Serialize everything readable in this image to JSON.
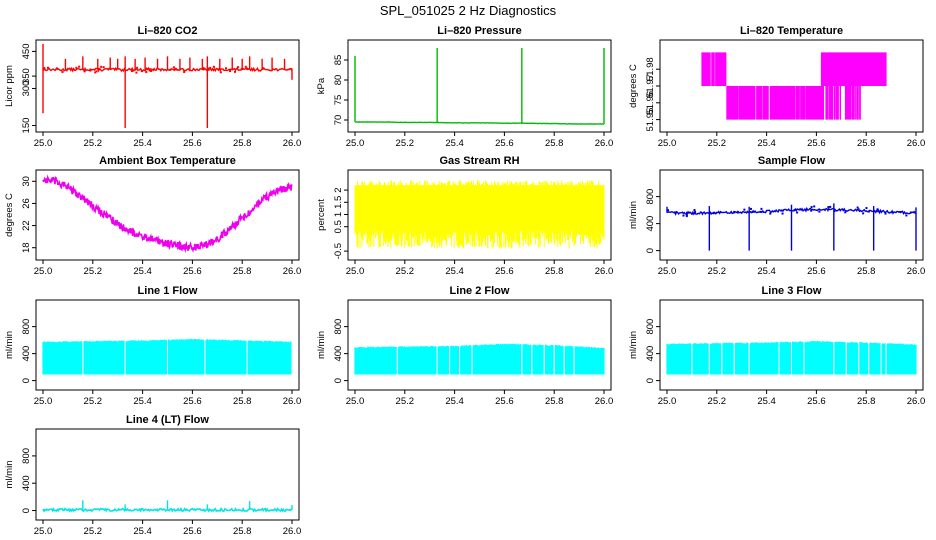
{
  "page_title": "SPL_051025  2 Hz Diagnostics",
  "chart_data": [
    {
      "type": "line",
      "title": "Li–820 CO2",
      "ylabel": "Licor ppm",
      "xlim": [
        25.0,
        26.0
      ],
      "ylim": [
        140,
        480
      ],
      "x_ticks": [
        "25.0",
        "25.2",
        "25.4",
        "25.6",
        "25.8",
        "26.0"
      ],
      "y_ticks": [
        150,
        300,
        350,
        450
      ],
      "color": "#ff0000",
      "series": [
        {
          "x": [
            25.0,
            25.02,
            25.04,
            25.06,
            25.08,
            25.1,
            25.12,
            25.14,
            25.16,
            25.18,
            25.2,
            25.22,
            25.24,
            25.26,
            25.28,
            25.3,
            25.32,
            25.34,
            25.36,
            25.38,
            25.4,
            25.42,
            25.44,
            25.46,
            25.48,
            25.5,
            25.52,
            25.54,
            25.56,
            25.58,
            25.6,
            25.62,
            25.64,
            25.66,
            25.68,
            25.7,
            25.72,
            25.74,
            25.76,
            25.78,
            25.8,
            25.82,
            25.84,
            25.86,
            25.88,
            25.9,
            25.92,
            25.94,
            25.96,
            25.98,
            26.0
          ],
          "values": [
            375,
            378,
            376,
            377,
            375,
            378,
            376,
            377,
            375,
            378,
            376,
            377,
            375,
            378,
            376,
            377,
            375,
            378,
            376,
            377,
            375,
            378,
            376,
            377,
            375,
            378,
            376,
            377,
            375,
            378,
            376,
            377,
            375,
            378,
            376,
            377,
            375,
            378,
            376,
            377,
            375,
            378,
            376,
            377,
            375,
            378,
            376,
            377,
            375,
            378,
            376
          ]
        }
      ],
      "spikes_up": [
        [
          25.0,
          480
        ],
        [
          25.09,
          420
        ],
        [
          25.16,
          430
        ],
        [
          25.22,
          420
        ],
        [
          25.27,
          425
        ],
        [
          25.3,
          420
        ],
        [
          25.33,
          430
        ],
        [
          25.37,
          420
        ],
        [
          25.41,
          425
        ],
        [
          25.46,
          420
        ],
        [
          25.5,
          430
        ],
        [
          25.55,
          420
        ],
        [
          25.59,
          425
        ],
        [
          25.64,
          420
        ],
        [
          25.66,
          430
        ],
        [
          25.71,
          420
        ],
        [
          25.76,
          425
        ],
        [
          25.8,
          420
        ],
        [
          25.83,
          430
        ],
        [
          25.88,
          420
        ],
        [
          25.92,
          425
        ],
        [
          25.97,
          420
        ]
      ],
      "spikes_down": [
        [
          25.0,
          200
        ],
        [
          25.33,
          140
        ],
        [
          25.66,
          140
        ],
        [
          26.0,
          335
        ]
      ]
    },
    {
      "type": "line",
      "title": "Li–820 Pressure",
      "ylabel": "kPa",
      "xlim": [
        25.0,
        26.0
      ],
      "ylim": [
        68,
        89
      ],
      "x_ticks": [
        "25.0",
        "25.2",
        "25.4",
        "25.6",
        "25.8",
        "26.0"
      ],
      "y_ticks": [
        70,
        75,
        80,
        85
      ],
      "color": "#00bb00",
      "series": [
        {
          "x": [
            25.0,
            25.1,
            25.2,
            25.3,
            25.4,
            25.5,
            25.6,
            25.7,
            25.8,
            25.9,
            26.0
          ],
          "values": [
            69.5,
            69.5,
            69.4,
            69.4,
            69.3,
            69.3,
            69.2,
            69.2,
            69.1,
            69.0,
            69.0
          ]
        }
      ],
      "spikes_up": [
        [
          25.0,
          86
        ],
        [
          25.33,
          88
        ],
        [
          25.67,
          88
        ],
        [
          26.0,
          88
        ]
      ],
      "spikes_down": []
    },
    {
      "type": "line",
      "title": "Li–820 Temperature",
      "ylabel": "degrees C",
      "xlim": [
        25.0,
        26.0
      ],
      "ylim": [
        51.945,
        51.995
      ],
      "x_ticks": [
        "25.0",
        "25.2",
        "25.4",
        "25.6",
        "25.8",
        "26.0"
      ],
      "y_ticks": [
        51.95,
        51.96,
        51.97,
        51.98
      ],
      "color": "#ff00ff",
      "series": [
        {
          "x": [
            25.0,
            25.14,
            25.15,
            25.2,
            25.24,
            25.6,
            25.67,
            25.8,
            25.88,
            26.0
          ],
          "values": [
            51.99,
            51.99,
            51.97,
            51.97,
            51.95,
            51.95,
            51.97,
            51.97,
            51.99,
            51.99
          ]
        }
      ]
    },
    {
      "type": "line",
      "title": "Ambient Box Temperature",
      "ylabel": "degrees C",
      "xlim": [
        25.0,
        26.0
      ],
      "ylim": [
        16.5,
        31.5
      ],
      "x_ticks": [
        "25.0",
        "25.2",
        "25.4",
        "25.6",
        "25.8",
        "26.0"
      ],
      "y_ticks": [
        18,
        22,
        26,
        30
      ],
      "color": "#ee00ee",
      "series": [
        {
          "x": [
            25.0,
            25.05,
            25.1,
            25.15,
            25.2,
            25.25,
            25.3,
            25.35,
            25.4,
            25.45,
            25.5,
            25.55,
            25.6,
            25.65,
            25.7,
            25.75,
            25.8,
            25.85,
            25.9,
            25.95,
            26.0
          ],
          "values": [
            30.3,
            30.0,
            28.9,
            27.3,
            25.6,
            23.9,
            22.3,
            21.0,
            20.0,
            19.3,
            18.8,
            18.3,
            18.0,
            18.4,
            19.6,
            21.3,
            23.4,
            25.4,
            27.2,
            28.5,
            29.0
          ]
        }
      ]
    },
    {
      "type": "area",
      "title": "Gas Stream RH",
      "ylabel": "percent",
      "xlim": [
        25.0,
        26.0
      ],
      "ylim": [
        -0.7,
        2.7
      ],
      "x_ticks": [
        "25.0",
        "25.2",
        "25.4",
        "25.6",
        "25.8",
        "26.0"
      ],
      "y_ticks": [
        -0.5,
        0.5,
        1.0,
        1.5,
        2.0
      ],
      "color": "#ffff00",
      "series": [
        {
          "name": "",
          "x": [
            25.0,
            26.0
          ],
          "values": [
            2.4,
            2.4
          ]
        },
        {
          "name": "",
          "x": [
            25.0,
            26.0
          ],
          "values": [
            -0.4,
            -0.4
          ]
        }
      ]
    },
    {
      "type": "line",
      "title": "Sample Flow",
      "ylabel": "ml/min",
      "xlim": [
        25.0,
        26.0
      ],
      "ylim": [
        -80,
        1150
      ],
      "x_ticks": [
        "25.0",
        "25.2",
        "25.4",
        "25.6",
        "25.8",
        "26.0"
      ],
      "y_ticks": [
        0,
        400,
        800
      ],
      "color": "#0000dd",
      "series": [
        {
          "x": [
            25.0,
            25.1,
            25.2,
            25.3,
            25.4,
            25.5,
            25.6,
            25.7,
            25.8,
            25.9,
            26.0
          ],
          "values": [
            560,
            555,
            560,
            570,
            580,
            600,
            610,
            605,
            590,
            570,
            560
          ]
        }
      ],
      "spikes_up": [
        [
          25.0,
          650
        ],
        [
          25.17,
          660
        ],
        [
          25.33,
          650
        ],
        [
          25.5,
          680
        ],
        [
          25.67,
          700
        ],
        [
          25.83,
          660
        ],
        [
          26.0,
          640
        ]
      ],
      "spikes_down": [
        [
          25.17,
          0
        ],
        [
          25.33,
          0
        ],
        [
          25.5,
          0
        ],
        [
          25.67,
          0
        ],
        [
          25.83,
          0
        ],
        [
          26.0,
          0
        ]
      ]
    },
    {
      "type": "area",
      "title": "Line 1 Flow",
      "ylabel": "ml/min",
      "xlim": [
        25.0,
        26.0
      ],
      "ylim": [
        -80,
        1150
      ],
      "x_ticks": [
        "25.0",
        "25.2",
        "25.4",
        "25.6",
        "25.8",
        "26.0"
      ],
      "y_ticks": [
        0,
        400,
        800
      ],
      "color": "#00ffff",
      "series": [
        {
          "name": "",
          "x": [
            25.0,
            25.2,
            25.4,
            25.6,
            25.8,
            26.0
          ],
          "values": [
            570,
            580,
            590,
            610,
            590,
            570
          ]
        },
        {
          "name": "",
          "x": [
            25.0,
            25.2,
            25.4,
            25.6,
            25.8,
            26.0
          ],
          "values": [
            90,
            90,
            90,
            90,
            90,
            90
          ]
        }
      ],
      "gaps": [
        25.16,
        25.33,
        25.5,
        25.65,
        25.82,
        26.0
      ]
    },
    {
      "type": "area",
      "title": "Line 2 Flow",
      "ylabel": "ml/min",
      "xlim": [
        25.0,
        26.0
      ],
      "ylim": [
        -80,
        1150
      ],
      "x_ticks": [
        "25.0",
        "25.2",
        "25.4",
        "25.6",
        "25.8",
        "26.0"
      ],
      "y_ticks": [
        0,
        400,
        800
      ],
      "color": "#00ffff",
      "series": [
        {
          "name": "",
          "x": [
            25.0,
            25.2,
            25.4,
            25.6,
            25.8,
            26.0
          ],
          "values": [
            490,
            500,
            510,
            540,
            520,
            480
          ]
        },
        {
          "name": "",
          "x": [
            25.0,
            25.2,
            25.4,
            25.6,
            25.8,
            26.0
          ],
          "values": [
            90,
            90,
            90,
            90,
            90,
            90
          ]
        }
      ],
      "gaps": [
        25.17,
        25.33,
        25.38,
        25.42,
        25.47,
        25.67,
        25.71,
        25.76,
        25.8,
        25.84,
        25.88
      ]
    },
    {
      "type": "area",
      "title": "Line 3 Flow",
      "ylabel": "ml/min",
      "xlim": [
        25.0,
        26.0
      ],
      "ylim": [
        -80,
        1150
      ],
      "x_ticks": [
        "25.0",
        "25.2",
        "25.4",
        "25.6",
        "25.8",
        "26.0"
      ],
      "y_ticks": [
        0,
        400,
        800
      ],
      "color": "#00ffff",
      "series": [
        {
          "name": "",
          "x": [
            25.0,
            25.2,
            25.4,
            25.6,
            25.8,
            26.0
          ],
          "values": [
            540,
            550,
            560,
            580,
            560,
            530
          ]
        },
        {
          "name": "",
          "x": [
            25.0,
            25.2,
            25.4,
            25.6,
            25.8,
            26.0
          ],
          "values": [
            90,
            90,
            90,
            90,
            90,
            90
          ]
        }
      ],
      "gaps": [
        25.1,
        25.17,
        25.22,
        25.27,
        25.33,
        25.45,
        25.5,
        25.55,
        25.67,
        25.72,
        25.77,
        25.81,
        25.86,
        25.88
      ]
    },
    {
      "type": "line",
      "title": "Line 4 (LT) Flow",
      "ylabel": "ml/min",
      "xlim": [
        25.0,
        26.0
      ],
      "ylim": [
        -80,
        1150
      ],
      "x_ticks": [
        "25.0",
        "25.2",
        "25.4",
        "25.6",
        "25.8",
        "26.0"
      ],
      "y_ticks": [
        0,
        400,
        800
      ],
      "color": "#00e5e5",
      "series": [
        {
          "x": [
            25.0,
            26.0
          ],
          "values": [
            10,
            10
          ]
        }
      ],
      "spikes_up": [
        [
          25.16,
          150
        ],
        [
          25.33,
          90
        ],
        [
          25.5,
          150
        ],
        [
          25.66,
          90
        ],
        [
          25.83,
          140
        ],
        [
          26.0,
          80
        ]
      ],
      "spikes_down": []
    }
  ]
}
